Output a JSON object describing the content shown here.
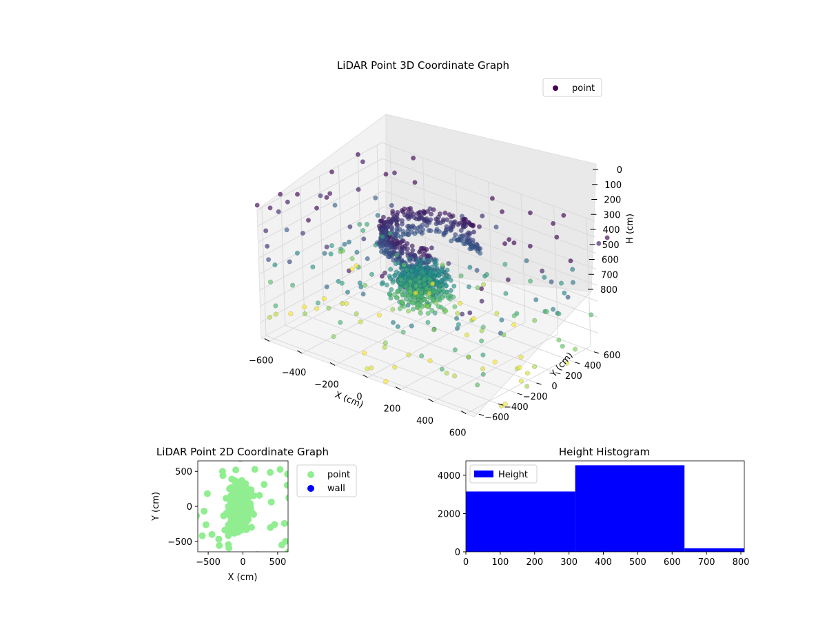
{
  "chart_data": [
    {
      "type": "scatter",
      "subtype": "3d",
      "title": "LiDAR Point 3D Coordinate Graph",
      "xlabel": "X (cm)",
      "ylabel": "Y (cm)",
      "zlabel": "H (cm)",
      "x_ticks": [
        "−600",
        "−400",
        "−200",
        "0",
        "200",
        "400",
        "600"
      ],
      "y_ticks": [
        "−600",
        "−400",
        "−200",
        "0",
        "200",
        "400",
        "600"
      ],
      "z_ticks": [
        "0",
        "100",
        "200",
        "300",
        "400",
        "500",
        "600",
        "700",
        "800"
      ],
      "xlim": [
        -650,
        650
      ],
      "ylim": [
        -650,
        650
      ],
      "zlim": [
        800,
        0
      ],
      "z_inverted": true,
      "colormap": "viridis",
      "grid": true,
      "legend": {
        "position": "top-right",
        "entries": [
          {
            "label": "point",
            "color": "#440154"
          }
        ]
      }
    },
    {
      "type": "scatter",
      "title": "LiDAR Point 2D Coordinate Graph",
      "xlabel": "X (cm)",
      "ylabel": "Y (cm)",
      "x_ticks": [
        "−500",
        "0",
        "500"
      ],
      "y_ticks": [
        "500",
        "0",
        "−500"
      ],
      "xlim": [
        -650,
        650
      ],
      "ylim": [
        -650,
        650
      ],
      "series": [
        {
          "name": "point",
          "color": "#90ee90"
        },
        {
          "name": "wall",
          "color": "#0000ff"
        }
      ],
      "legend": {
        "position": "outside-right"
      }
    },
    {
      "type": "bar",
      "subtype": "histogram",
      "title": "Height Histogram",
      "x_ticks": [
        "0",
        "100",
        "200",
        "300",
        "400",
        "500",
        "600",
        "700",
        "800"
      ],
      "y_ticks": [
        "0",
        "2000",
        "4000"
      ],
      "xlim": [
        0,
        810
      ],
      "ylim": [
        0,
        4750
      ],
      "bins": [
        {
          "start": 0,
          "end": 318,
          "count": 3150
        },
        {
          "start": 318,
          "end": 636,
          "count": 4520
        },
        {
          "start": 636,
          "end": 810,
          "count": 180
        }
      ],
      "series": [
        {
          "name": "Height",
          "color": "#0000ff"
        }
      ],
      "legend": {
        "position": "top-left"
      }
    }
  ]
}
